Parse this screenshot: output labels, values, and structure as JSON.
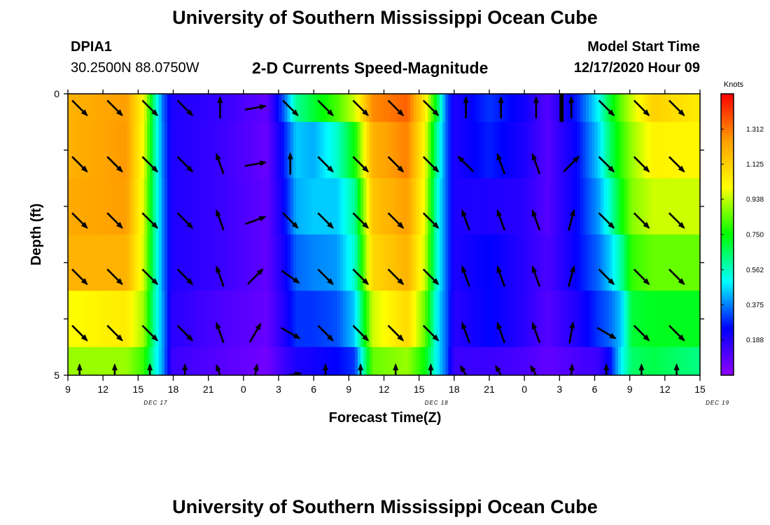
{
  "header": {
    "title": "University of Southern Mississippi Ocean Cube",
    "station_id": "DPIA1",
    "station_coords": "30.2500N 88.0750W",
    "subtitle": "2-D Currents Speed-Magnitude",
    "start_label": "Model Start Time",
    "start_value": "12/17/2020 Hour 09"
  },
  "footer": {
    "title": "University of Southern Mississippi Ocean Cube"
  },
  "colors": {
    "colormap": [
      "#8f00ff",
      "#0000ff",
      "#00ffff",
      "#00ff00",
      "#ffff00",
      "#ff9f00",
      "#ff0000"
    ],
    "missing": "#000000",
    "arrow": "#000000"
  },
  "chart_data": {
    "type": "heatmap",
    "title": "2-D Currents Speed-Magnitude",
    "xlabel": "Forecast Time(Z)",
    "ylabel": "Depth (ft)",
    "x_hours": [
      0,
      3,
      6,
      9,
      12,
      15,
      18,
      21,
      24,
      27,
      30,
      33,
      36,
      39,
      42,
      45,
      48,
      51,
      54
    ],
    "x_tick_labels": [
      "9",
      "12",
      "15",
      "18",
      "21",
      "0",
      "3",
      "6",
      "9",
      "12",
      "15",
      "18",
      "21",
      "0",
      "3",
      "6",
      "9",
      "12",
      "15"
    ],
    "date_labels": [
      {
        "text": "DEC 17",
        "hour": 7.5
      },
      {
        "text": "DEC 18",
        "hour": 31.5
      },
      {
        "text": "DEC 19",
        "hour": 55.5
      }
    ],
    "ylim": [
      0,
      5
    ],
    "y_tick_labels": [
      "0",
      "5"
    ],
    "y_minor_ticks": [
      1,
      2,
      3,
      4
    ],
    "colorbar": {
      "unit": "Knots",
      "range": [
        0.0,
        1.5
      ],
      "ticks": [
        "1.312",
        "1.125",
        "0.938",
        "0.750",
        "0.562",
        "0.375",
        "0.188"
      ]
    },
    "speed_keyframes": [
      {
        "hour": 0,
        "values": [
          1.2,
          1.2,
          1.22,
          1.2,
          1.0,
          0.9
        ]
      },
      {
        "hour": 5,
        "values": [
          1.25,
          1.26,
          1.25,
          1.2,
          1.05,
          0.9
        ]
      },
      {
        "hour": 6.5,
        "values": [
          1.0,
          0.98,
          0.96,
          0.95,
          0.9,
          0.8
        ]
      },
      {
        "hour": 7.4,
        "values": [
          0.6,
          0.6,
          0.6,
          0.6,
          0.58,
          0.55
        ]
      },
      {
        "hour": 8.1,
        "values": [
          0.36,
          0.37,
          0.38,
          0.38,
          0.4,
          0.4
        ]
      },
      {
        "hour": 8.9,
        "values": [
          0.2,
          0.2,
          0.2,
          0.2,
          0.18,
          0.15
        ]
      },
      {
        "hour": 13,
        "values": [
          0.16,
          0.15,
          0.15,
          0.15,
          0.12,
          0.1
        ]
      },
      {
        "hour": 17,
        "values": [
          0.08,
          0.07,
          0.08,
          0.08,
          0.07,
          0.05
        ]
      },
      {
        "hour": 18.5,
        "values": [
          0.35,
          0.28,
          0.25,
          0.22,
          0.2,
          0.15
        ]
      },
      {
        "hour": 19.5,
        "values": [
          0.6,
          0.45,
          0.42,
          0.35,
          0.3,
          0.2
        ]
      },
      {
        "hour": 21,
        "values": [
          0.7,
          0.42,
          0.45,
          0.38,
          0.3,
          0.22
        ]
      },
      {
        "hour": 23,
        "values": [
          0.82,
          0.55,
          0.45,
          0.4,
          0.33,
          0.25
        ]
      },
      {
        "hour": 24.5,
        "values": [
          0.95,
          0.75,
          0.6,
          0.55,
          0.45,
          0.3
        ]
      },
      {
        "hour": 26,
        "values": [
          1.28,
          1.2,
          1.15,
          1.1,
          0.95,
          0.85
        ]
      },
      {
        "hour": 29,
        "values": [
          1.35,
          1.3,
          1.25,
          1.2,
          1.1,
          0.9
        ]
      },
      {
        "hour": 30.5,
        "values": [
          1.05,
          1.0,
          0.98,
          0.95,
          0.85,
          0.75
        ]
      },
      {
        "hour": 31.5,
        "values": [
          0.7,
          0.6,
          0.55,
          0.55,
          0.5,
          0.5
        ]
      },
      {
        "hour": 32.3,
        "values": [
          0.35,
          0.35,
          0.35,
          0.35,
          0.35,
          0.35
        ]
      },
      {
        "hour": 33,
        "values": [
          0.2,
          0.2,
          0.2,
          0.2,
          0.18,
          0.15
        ]
      },
      {
        "hour": 36,
        "values": [
          0.3,
          0.28,
          0.2,
          0.25,
          0.25,
          0.15
        ]
      },
      {
        "hour": 39,
        "values": [
          0.22,
          0.2,
          0.18,
          0.18,
          0.18,
          0.12
        ]
      },
      {
        "hour": 41,
        "values": [
          0.1,
          0.1,
          0.1,
          0.12,
          0.1,
          0.08
        ]
      },
      {
        "hour": 42.2,
        "values": [
          0.2,
          0.18,
          0.18,
          0.18,
          0.15,
          0.1
        ]
      },
      {
        "hour": 43.5,
        "values": [
          0.28,
          0.25,
          0.25,
          0.25,
          0.2,
          0.12
        ]
      },
      {
        "hour": 45.3,
        "values": [
          0.5,
          0.45,
          0.4,
          0.35,
          0.3,
          0.15
        ]
      },
      {
        "hour": 46.3,
        "values": [
          0.7,
          0.65,
          0.55,
          0.45,
          0.35,
          0.25
        ]
      },
      {
        "hour": 47.3,
        "values": [
          0.85,
          0.8,
          0.75,
          0.6,
          0.45,
          0.5
        ]
      },
      {
        "hour": 48.2,
        "values": [
          0.95,
          0.9,
          0.88,
          0.8,
          0.7,
          0.65
        ]
      },
      {
        "hour": 50,
        "values": [
          1.12,
          1.03,
          0.95,
          0.85,
          0.72,
          0.68
        ]
      },
      {
        "hour": 54,
        "values": [
          1.05,
          1.02,
          0.95,
          0.85,
          0.72,
          0.62
        ]
      }
    ],
    "missing_cell": {
      "hour_start": 42.0,
      "hour_end": 42.35,
      "depth_start": 0.0,
      "depth_end": 0.5
    },
    "vectors": {
      "cols": [
        1,
        4,
        7,
        10,
        13,
        16,
        19,
        22,
        25,
        28,
        31,
        34,
        37,
        40,
        43,
        46,
        49,
        52
      ],
      "rows": [
        0.25,
        1.25,
        2.25,
        3.25,
        4.25,
        5.0
      ],
      "directions_deg": [
        [
          135,
          135,
          135,
          135,
          0,
          80,
          135,
          135,
          135,
          135,
          135,
          0,
          0,
          0,
          0,
          135,
          135,
          135
        ],
        [
          135,
          135,
          135,
          135,
          -20,
          80,
          0,
          135,
          135,
          135,
          135,
          -45,
          -20,
          -20,
          45,
          135,
          135,
          135
        ],
        [
          135,
          135,
          135,
          135,
          -20,
          70,
          135,
          135,
          135,
          135,
          135,
          -20,
          -20,
          -20,
          15,
          135,
          135,
          135
        ],
        [
          135,
          135,
          135,
          135,
          -20,
          45,
          125,
          135,
          135,
          135,
          135,
          -20,
          -20,
          -20,
          15,
          135,
          135,
          135
        ],
        [
          135,
          135,
          135,
          135,
          -20,
          30,
          120,
          135,
          135,
          135,
          135,
          -20,
          -20,
          -20,
          10,
          120,
          135,
          135
        ],
        [
          0,
          0,
          0,
          0,
          -20,
          10,
          80,
          0,
          0,
          0,
          0,
          -30,
          -30,
          -30,
          5,
          0,
          0,
          0
        ]
      ]
    }
  }
}
